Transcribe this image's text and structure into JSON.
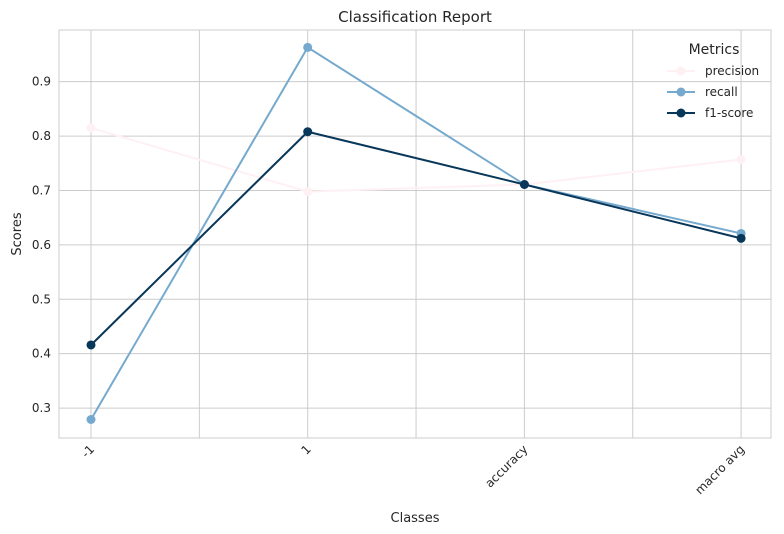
{
  "chart_data": {
    "type": "line",
    "title": "Classification Report",
    "xlabel": "Classes",
    "ylabel": "Scores",
    "categories": [
      "-1",
      "1",
      "accuracy",
      "macro avg"
    ],
    "ylim": [
      0.245,
      0.995
    ],
    "yticks": [
      "0.3",
      "0.4",
      "0.5",
      "0.6",
      "0.7",
      "0.8",
      "0.9"
    ],
    "grid": true,
    "legend": {
      "title": "Metrics",
      "placement": "top-right"
    },
    "series": [
      {
        "name": "precision",
        "color": "#fff0f3",
        "values": [
          0.815,
          0.698,
          0.711,
          0.757
        ]
      },
      {
        "name": "recall",
        "color": "#75a9cd",
        "values": [
          0.279,
          0.963,
          0.711,
          0.621
        ]
      },
      {
        "name": "f1-score",
        "color": "#08375a",
        "values": [
          0.416,
          0.808,
          0.711,
          0.612
        ]
      }
    ]
  }
}
